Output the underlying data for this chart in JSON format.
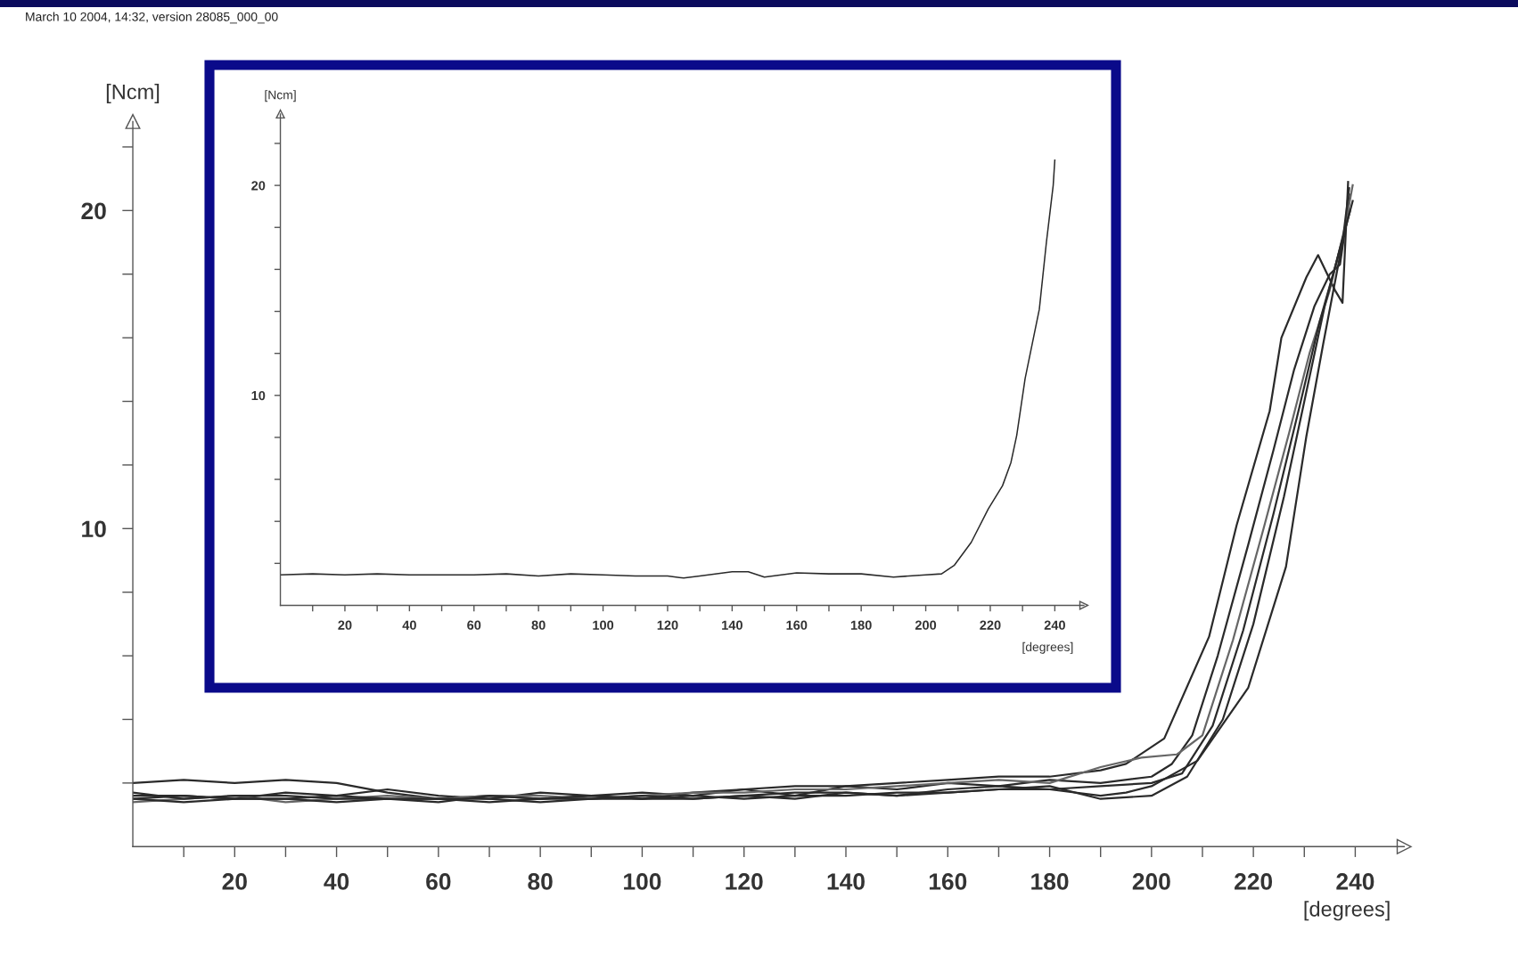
{
  "chart_data": [
    {
      "type": "line",
      "xlabel": "[degrees]",
      "ylabel": "[Ncm]",
      "xlim": [
        0,
        249.6
      ],
      "ylim": [
        0,
        22.8
      ],
      "xticks": [
        {
          "value": 10,
          "label": null
        },
        20,
        {
          "value": 30,
          "label": null
        },
        40,
        {
          "value": 50,
          "label": null
        },
        60,
        {
          "value": 70,
          "label": null
        },
        80,
        {
          "value": 90,
          "label": null
        },
        100,
        {
          "value": 110,
          "label": null
        },
        120,
        {
          "value": 130,
          "label": null
        },
        140,
        {
          "value": 150,
          "label": null
        },
        160,
        {
          "value": 170,
          "label": null
        },
        180,
        {
          "value": 190,
          "label": null
        },
        200,
        {
          "value": 210,
          "label": null
        },
        220,
        {
          "value": 230,
          "label": null
        },
        240
      ],
      "yticks": [
        {
          "value": 2,
          "label": null
        },
        {
          "value": 4,
          "label": null
        },
        {
          "value": 6,
          "label": null
        },
        {
          "value": 8,
          "label": null
        },
        10,
        {
          "value": 12,
          "label": null
        },
        {
          "value": 14,
          "label": null
        },
        {
          "value": 16,
          "label": null
        },
        {
          "value": 18,
          "label": null
        },
        20,
        {
          "value": 22,
          "label": null
        }
      ],
      "annotations": [
        "March 10 2004, 14:32, version 28085_000_00"
      ],
      "series": [
        {
          "color": "#2a2a2a",
          "x": [
            0,
            10,
            20,
            30,
            40,
            50,
            60,
            70,
            80,
            90,
            100,
            110,
            120,
            130,
            140,
            150,
            160,
            170,
            180,
            190,
            195,
            202.5,
            211.3,
            216.7,
            223.2,
            225.5,
            230.4,
            232.7,
            236,
            237.5,
            238.6
          ],
          "values": [
            2.0,
            2.1,
            2.0,
            2.1,
            2.0,
            1.7,
            1.5,
            1.6,
            1.5,
            1.6,
            1.7,
            1.6,
            1.8,
            1.9,
            1.9,
            2.0,
            2.1,
            2.2,
            2.2,
            2.4,
            2.6,
            3.4,
            6.6,
            10.1,
            13.7,
            16.0,
            17.9,
            18.6,
            17.5,
            17.1,
            20.9
          ]
        },
        {
          "color": "#2a2a2a",
          "x": [
            0,
            10,
            20,
            30,
            40,
            50,
            60,
            70,
            80,
            90,
            100,
            110,
            120,
            130,
            140,
            150,
            160,
            170,
            180,
            190,
            200,
            204,
            208,
            213,
            219,
            224,
            228,
            232,
            235,
            237,
            239
          ],
          "values": [
            1.5,
            1.6,
            1.5,
            1.7,
            1.6,
            1.8,
            1.6,
            1.5,
            1.7,
            1.6,
            1.5,
            1.7,
            1.8,
            1.6,
            1.9,
            1.8,
            2.0,
            1.9,
            2.1,
            2.0,
            2.2,
            2.6,
            3.5,
            6.0,
            9.5,
            12.5,
            15.0,
            17.0,
            18.0,
            18.3,
            20.5
          ]
        },
        {
          "color": "#666666",
          "x": [
            0,
            10,
            20,
            30,
            40,
            50,
            60,
            70,
            80,
            90,
            100,
            110,
            120,
            130,
            140,
            150,
            160,
            170,
            180,
            190,
            198,
            205,
            210,
            216,
            222,
            227,
            231,
            235,
            238,
            239.5
          ],
          "values": [
            1.4,
            1.5,
            1.6,
            1.4,
            1.5,
            1.6,
            1.5,
            1.6,
            1.6,
            1.5,
            1.6,
            1.7,
            1.7,
            1.8,
            1.8,
            1.9,
            2.0,
            2.1,
            2.0,
            2.5,
            2.8,
            2.9,
            3.5,
            6.5,
            10.0,
            13.0,
            15.5,
            17.5,
            19.5,
            20.8
          ]
        },
        {
          "color": "#2a2a2a",
          "x": [
            0,
            10,
            20,
            30,
            40,
            50,
            60,
            70,
            80,
            90,
            100,
            110,
            120,
            130,
            140,
            150,
            160,
            170,
            180,
            190,
            200,
            206,
            212,
            218,
            224,
            229,
            233,
            236,
            239
          ],
          "values": [
            1.7,
            1.5,
            1.6,
            1.6,
            1.5,
            1.5,
            1.4,
            1.6,
            1.5,
            1.5,
            1.6,
            1.5,
            1.6,
            1.7,
            1.7,
            1.6,
            1.8,
            1.9,
            1.8,
            1.9,
            2.0,
            2.3,
            3.8,
            6.8,
            10.5,
            13.8,
            16.5,
            18.2,
            20.0
          ]
        },
        {
          "color": "#2a2a2a",
          "x": [
            0,
            10,
            20,
            30,
            40,
            50,
            60,
            70,
            80,
            90,
            100,
            110,
            120,
            130,
            140,
            150,
            160,
            170,
            180,
            190,
            200,
            207,
            214,
            220,
            226,
            230,
            234,
            237,
            239.5
          ],
          "values": [
            1.6,
            1.6,
            1.5,
            1.5,
            1.6,
            1.5,
            1.5,
            1.5,
            1.4,
            1.5,
            1.5,
            1.6,
            1.5,
            1.6,
            1.6,
            1.7,
            1.7,
            1.8,
            1.9,
            1.5,
            1.6,
            2.2,
            4.0,
            7.0,
            11.0,
            14.0,
            17.0,
            18.8,
            20.3
          ]
        },
        {
          "color": "#2a2a2a",
          "x": [
            0,
            10,
            20,
            30,
            40,
            50,
            60,
            70,
            80,
            90,
            100,
            110,
            120,
            130,
            140,
            150,
            160,
            170,
            180,
            190,
            195,
            200,
            209,
            219,
            226.4,
            230.4,
            233.7,
            237.5,
            238.8
          ],
          "values": [
            1.5,
            1.4,
            1.5,
            1.5,
            1.4,
            1.5,
            1.5,
            1.4,
            1.5,
            1.6,
            1.5,
            1.5,
            1.6,
            1.5,
            1.7,
            1.6,
            1.7,
            1.8,
            1.8,
            1.6,
            1.7,
            1.9,
            2.7,
            5.0,
            8.8,
            12.9,
            15.8,
            19.0,
            20.7
          ]
        }
      ]
    },
    {
      "type": "line",
      "xlabel": "[degrees]",
      "ylabel": "[Ncm]",
      "xlim": [
        0,
        249
      ],
      "ylim": [
        0,
        23.4
      ],
      "xticks": [
        {
          "value": 10,
          "label": null
        },
        20,
        {
          "value": 30,
          "label": null
        },
        40,
        {
          "value": 50,
          "label": null
        },
        60,
        {
          "value": 70,
          "label": null
        },
        80,
        {
          "value": 90,
          "label": null
        },
        100,
        {
          "value": 110,
          "label": null
        },
        120,
        {
          "value": 130,
          "label": null
        },
        140,
        {
          "value": 150,
          "label": null
        },
        160,
        {
          "value": 170,
          "label": null
        },
        180,
        {
          "value": 190,
          "label": null
        },
        200,
        {
          "value": 210,
          "label": null
        },
        220,
        {
          "value": 230,
          "label": null
        },
        240
      ],
      "yticks": [
        {
          "value": 2,
          "label": null
        },
        {
          "value": 4,
          "label": null
        },
        {
          "value": 6,
          "label": null
        },
        {
          "value": 8,
          "label": null
        },
        10,
        {
          "value": 12,
          "label": null
        },
        {
          "value": 14,
          "label": null
        },
        {
          "value": 16,
          "label": null
        },
        {
          "value": 18,
          "label": null
        },
        20,
        {
          "value": 22,
          "label": null
        }
      ],
      "series": [
        {
          "color": "#2a2a2a",
          "x": [
            0,
            10,
            20,
            30,
            40,
            50,
            60,
            70,
            80,
            90,
            100,
            110,
            120,
            125,
            130,
            140,
            145,
            150,
            160,
            170,
            180,
            190,
            200,
            204.9,
            208.8,
            214.1,
            219.4,
            223.8,
            226.4,
            228.2,
            230.8,
            235.2,
            237.4,
            239.5,
            240
          ],
          "values": [
            1.45,
            1.5,
            1.45,
            1.5,
            1.45,
            1.45,
            1.45,
            1.5,
            1.4,
            1.5,
            1.45,
            1.4,
            1.4,
            1.3,
            1.4,
            1.6,
            1.6,
            1.35,
            1.55,
            1.5,
            1.5,
            1.35,
            1.45,
            1.5,
            1.9,
            3.0,
            4.6,
            5.7,
            6.8,
            8.1,
            10.8,
            14.1,
            17.3,
            20.0,
            21.2
          ]
        }
      ]
    }
  ]
}
